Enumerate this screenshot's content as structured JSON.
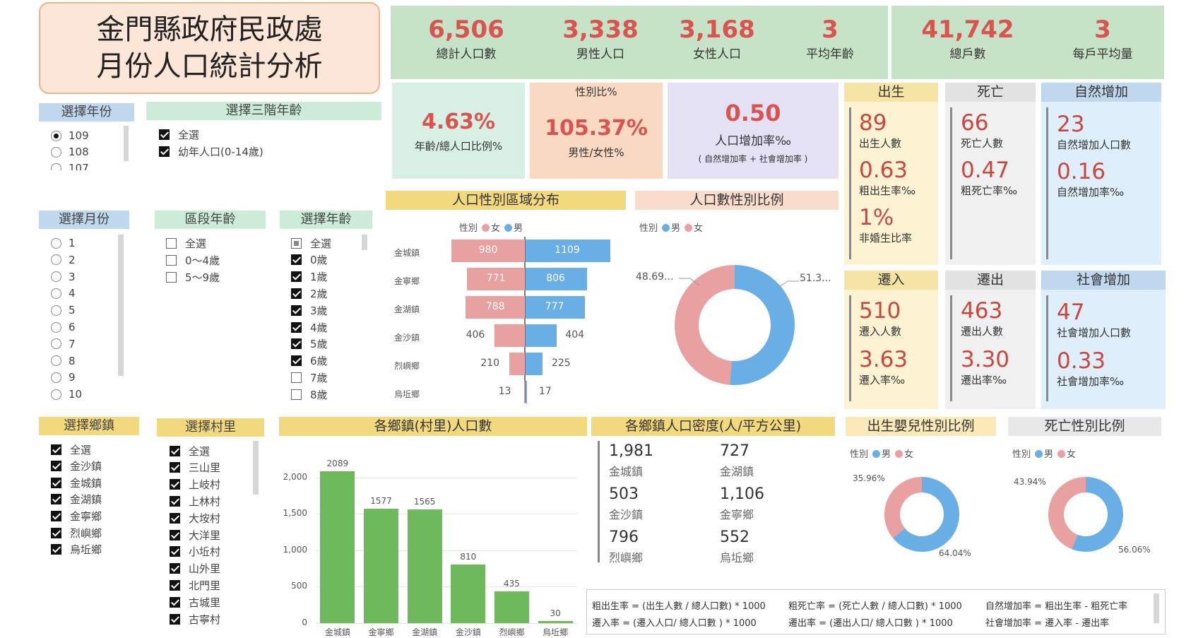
{
  "title": {
    "line1": "金門縣政府民政處",
    "line2": "月份人口統計分析"
  },
  "kpis": [
    {
      "value": "6,506",
      "label": "總計人口數"
    },
    {
      "value": "3,338",
      "label": "男性人口"
    },
    {
      "value": "3,168",
      "label": "女性人口"
    },
    {
      "value": "3",
      "label": "平均年齡"
    },
    {
      "value": "41,742",
      "label": "總戶數"
    },
    {
      "value": "3",
      "label": "每戶平均量"
    }
  ],
  "cards": {
    "age_ratio": {
      "value": "4.63%",
      "label": "年齡/總人口比例%"
    },
    "sex_ratio": {
      "heading": "性別比%",
      "value": "105.37%",
      "label": "男性/女性%"
    },
    "growth": {
      "value": "0.50",
      "label": "人口增加率‰",
      "sub": "( 自然增加率 + 社會增加率 )"
    }
  },
  "births": {
    "header": "出生",
    "v1": "89",
    "l1": "出生人數",
    "v2": "0.63",
    "l2": "粗出生率‰",
    "v3": "1%",
    "l3": "非婚生比率"
  },
  "deaths": {
    "header": "死亡",
    "v1": "66",
    "l1": "死亡人數",
    "v2": "0.47",
    "l2": "粗死亡率‰"
  },
  "natural": {
    "header": "自然增加",
    "v1": "23",
    "l1": "自然增加人口數",
    "v2": "0.16",
    "l2": "自然增加率‰"
  },
  "movein": {
    "header": "遷入",
    "v1": "510",
    "l1": "遷入人數",
    "v2": "3.63",
    "l2": "遷入率‰"
  },
  "moveout": {
    "header": "遷出",
    "v1": "463",
    "l1": "遷出人數",
    "v2": "3.30",
    "l2": "遷出率‰"
  },
  "social": {
    "header": "社會增加",
    "v1": "47",
    "l1": "社會增加人口數",
    "v2": "0.33",
    "l2": "社會增加率‰"
  },
  "slicers": {
    "year": {
      "header": "選擇年份",
      "options": [
        "109",
        "108",
        "107"
      ]
    },
    "agegroup3": {
      "header": "選擇三階年齡",
      "options": [
        "全選",
        "幼年人口(0-14歲)"
      ]
    },
    "month": {
      "header": "選擇月份",
      "options": [
        "1",
        "2",
        "3",
        "4",
        "5",
        "6",
        "7",
        "8",
        "9",
        "10"
      ]
    },
    "agerange": {
      "header": "區段年齡",
      "options": [
        "全選",
        "0～4歲",
        "5～9歲"
      ]
    },
    "age": {
      "header": "選擇年齡",
      "options": [
        "全選",
        "0歲",
        "1歲",
        "2歲",
        "3歲",
        "4歲",
        "5歲",
        "6歲",
        "7歲",
        "8歲"
      ]
    },
    "town": {
      "header": "選擇鄉鎮",
      "options": [
        "全選",
        "金沙鎮",
        "金城鎮",
        "金湖鎮",
        "金寧鄉",
        "烈嶼鄉",
        "烏坵鄉"
      ]
    },
    "village": {
      "header": "選擇村里",
      "options": [
        "全選",
        "三山里",
        "上岐村",
        "上林村",
        "大垵村",
        "大洋里",
        "小坵村",
        "山外里",
        "北門里",
        "古城里",
        "古寧村"
      ]
    }
  },
  "colors": {
    "female": "#e8a0a0",
    "male": "#6aaee6",
    "bar": "#6db95b",
    "kpi": "#c7e3c7",
    "accent": "#c9473f"
  },
  "legend": {
    "field": "性別",
    "female": "女",
    "male": "男"
  },
  "pyramid": {
    "header": "人口性別區域分布"
  },
  "donut_sex": {
    "header": "人口數性別比例",
    "left_label": "48.69...",
    "right_label": "51.3..."
  },
  "donut_birth": {
    "header": "出生嬰兒性別比例",
    "left_label": "35.96%",
    "right_label": "64.04%"
  },
  "donut_death": {
    "header": "死亡性別比例",
    "left_label": "43.94%",
    "right_label": "56.06%"
  },
  "bar_header": "各鄉鎮(村里)人口數",
  "density": {
    "header": "各鄉鎮人口密度(人/平方公里)",
    "items": [
      {
        "value": "1,981",
        "label": "金城鎮"
      },
      {
        "value": "727",
        "label": "金湖鎮"
      },
      {
        "value": "503",
        "label": "金沙鎮"
      },
      {
        "value": "1,106",
        "label": "金寧鄉"
      },
      {
        "value": "796",
        "label": "烈嶼鄉"
      },
      {
        "value": "552",
        "label": "烏坵鄉"
      }
    ]
  },
  "formulas": [
    "粗出生率 = (出生人數 / 總人口數) * 1000",
    "粗死亡率 = (死亡人數 / 總人口數) * 1000",
    "自然增加率 = 粗出生率 - 粗死亡率",
    "遷入率 = (遷入人口/ 總人口數 ) * 1000",
    "遷出率 = (遷出人口/ 總人口數 ) * 1000",
    "社會增加率 = 遷入率 - 遷出率"
  ],
  "chart_data": [
    {
      "type": "bar",
      "title": "人口性別區域分布",
      "categories": [
        "金城鎮",
        "金寧鄉",
        "金湖鎮",
        "金沙鎮",
        "烈嶼鄉",
        "烏坵鄉"
      ],
      "series": [
        {
          "name": "女",
          "values": [
            980,
            771,
            788,
            406,
            210,
            13
          ]
        },
        {
          "name": "男",
          "values": [
            1109,
            806,
            777,
            404,
            225,
            17
          ]
        }
      ],
      "legend": "top-left"
    },
    {
      "type": "pie",
      "title": "人口數性別比例",
      "categories": [
        "女",
        "男"
      ],
      "values": [
        48.69,
        51.31
      ]
    },
    {
      "type": "bar",
      "title": "各鄉鎮(村里)人口數",
      "categories": [
        "金城鎮",
        "金寧鄉",
        "金湖鎮",
        "金沙鎮",
        "烈嶼鄉",
        "烏坵鄉"
      ],
      "values": [
        2089,
        1577,
        1565,
        810,
        435,
        30
      ],
      "ylim": [
        0,
        2300
      ],
      "yticks": [
        "0",
        "500",
        "1,000",
        "1,500",
        "2,000"
      ]
    },
    {
      "type": "pie",
      "title": "出生嬰兒性別比例",
      "categories": [
        "女",
        "男"
      ],
      "values": [
        35.96,
        64.04
      ]
    },
    {
      "type": "pie",
      "title": "死亡性別比例",
      "categories": [
        "女",
        "男"
      ],
      "values": [
        43.94,
        56.06
      ]
    }
  ]
}
